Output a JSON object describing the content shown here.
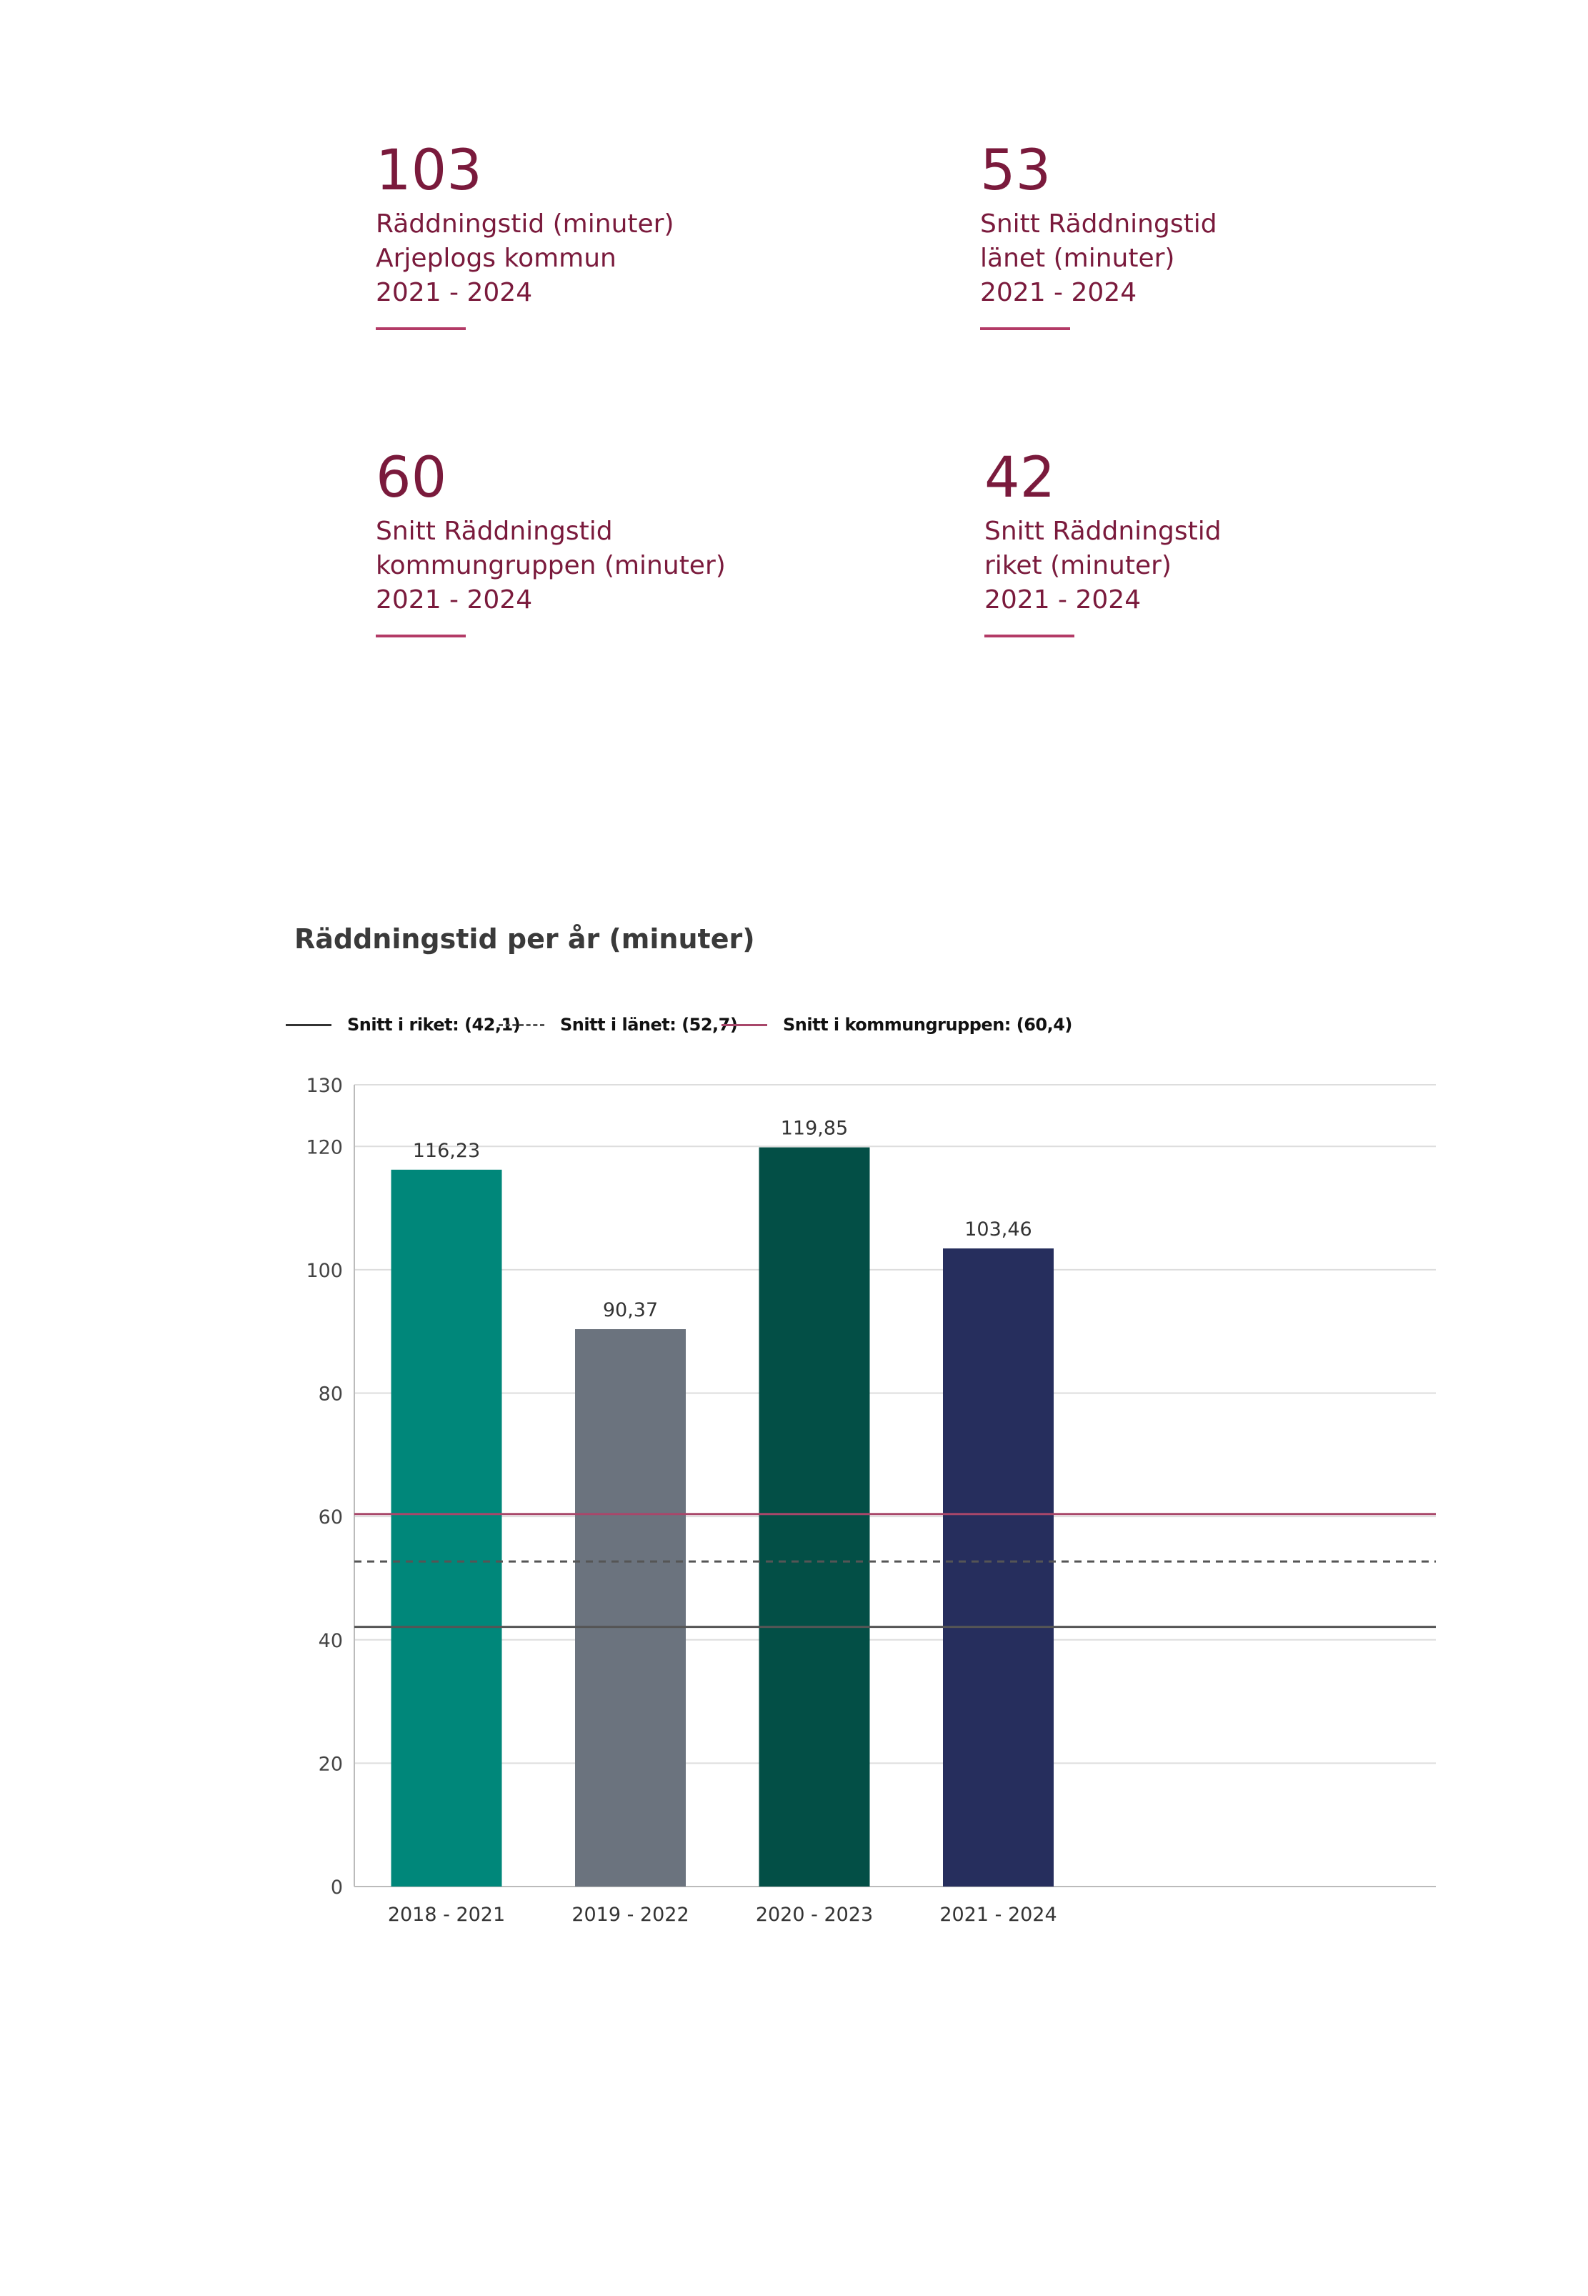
{
  "stats": [
    {
      "value": "103",
      "lines": [
        "Räddningstid (minuter)",
        "Arjeplogs kommun",
        "2021 - 2024"
      ]
    },
    {
      "value": "53",
      "lines": [
        "Snitt Räddningstid",
        "länet (minuter)",
        "2021 - 2024"
      ]
    },
    {
      "value": "60",
      "lines": [
        "Snitt Räddningstid",
        "kommungruppen (minuter)",
        "2021 - 2024"
      ]
    },
    {
      "value": "42",
      "lines": [
        "Snitt Räddningstid",
        "riket (minuter)",
        "2021 - 2024"
      ]
    }
  ],
  "legend": {
    "riket": "Snitt i riket: (42,1)",
    "lanet": "Snitt i länet: (52,7)",
    "grupp": "Snitt i kommungruppen: (60,4)"
  },
  "colors": {
    "stat_text": "#7a1a3c",
    "riket_line": "#555555",
    "lanet_line": "#555555",
    "grupp_line": "#a8476a",
    "grid": "#dddddd"
  },
  "chart_data": {
    "type": "bar",
    "title": "Räddningstid per år (minuter)",
    "categories": [
      "2018 - 2021",
      "2019 - 2022",
      "2020 - 2023",
      "2021 - 2024"
    ],
    "values": [
      116.23,
      90.37,
      119.85,
      103.46
    ],
    "value_labels": [
      "116,23",
      "90,37",
      "119,85",
      "103,46"
    ],
    "bar_colors": [
      "#00877a",
      "#6b737e",
      "#034f46",
      "#262e5d"
    ],
    "yticks": [
      0,
      20,
      40,
      60,
      80,
      100,
      120,
      130
    ],
    "ylim": [
      0,
      130
    ],
    "reference_lines": [
      {
        "name": "Snitt i riket",
        "value": 42.1,
        "style": "solid"
      },
      {
        "name": "Snitt i länet",
        "value": 52.7,
        "style": "dashed"
      },
      {
        "name": "Snitt i kommungruppen",
        "value": 60.4,
        "style": "solid"
      }
    ],
    "xlabel": "",
    "ylabel": "",
    "grid": true
  }
}
